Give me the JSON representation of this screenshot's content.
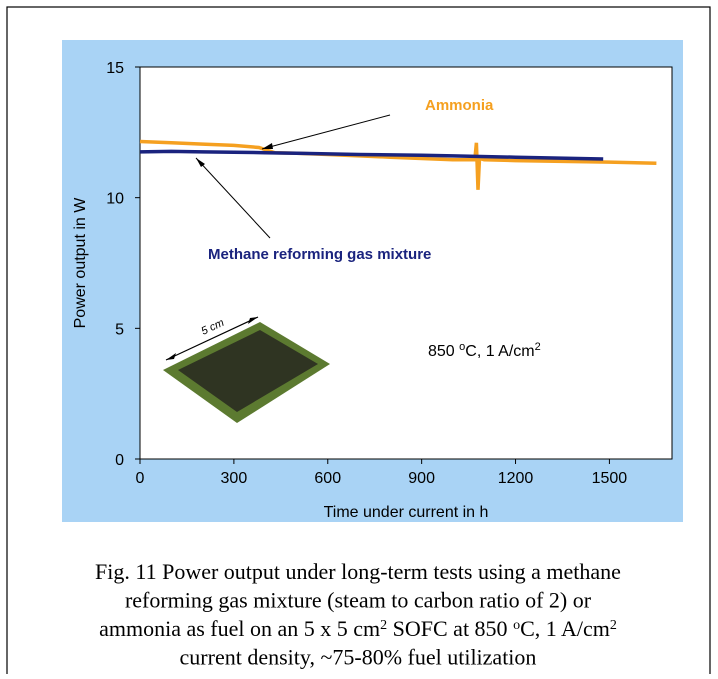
{
  "chart_data": {
    "type": "line",
    "x_label": "Time under current in h",
    "y_label": "Power output in W",
    "xlim": [
      0,
      1700
    ],
    "xticks": [
      0,
      300,
      600,
      900,
      1200,
      1500
    ],
    "ylim": [
      0,
      15
    ],
    "yticks": [
      0,
      5,
      10,
      15
    ],
    "series": [
      {
        "name": "Ammonia",
        "color": "#f5a020",
        "x": [
          0,
          100,
          200,
          300,
          380,
          410,
          430,
          500,
          600,
          700,
          800,
          900,
          1000,
          1070,
          1075,
          1080,
          1085,
          1100,
          1200,
          1300,
          1400,
          1500,
          1600,
          1650
        ],
        "values": [
          12.15,
          12.1,
          12.05,
          12.0,
          11.92,
          11.8,
          11.72,
          11.7,
          11.65,
          11.6,
          11.55,
          11.5,
          11.45,
          11.45,
          12.1,
          10.3,
          11.5,
          11.45,
          11.42,
          11.4,
          11.38,
          11.36,
          11.33,
          11.32
        ]
      },
      {
        "name": "Methane reforming gas mixture",
        "color": "#1a237e",
        "x": [
          0,
          100,
          200,
          300,
          400,
          500,
          700,
          900,
          1000,
          1200,
          1400,
          1480
        ],
        "values": [
          11.75,
          11.77,
          11.75,
          11.74,
          11.72,
          11.7,
          11.65,
          11.62,
          11.6,
          11.55,
          11.5,
          11.48
        ]
      }
    ],
    "annotation": [
      "850 ",
      "o",
      "C, 1 A/cm",
      "2"
    ],
    "inset_label": "5 cm"
  },
  "caption": [
    [
      "Fig. 11 Power output under long-term tests using a methane"
    ],
    [
      "reforming gas mixture (steam to carbon ratio of 2) or"
    ],
    [
      "ammonia as fuel on an 5 x 5 cm",
      "2",
      " SOFC at 850 ",
      "o",
      "C, 1 A/cm",
      "2"
    ],
    [
      "current density, ~75-80% fuel utilization"
    ]
  ]
}
